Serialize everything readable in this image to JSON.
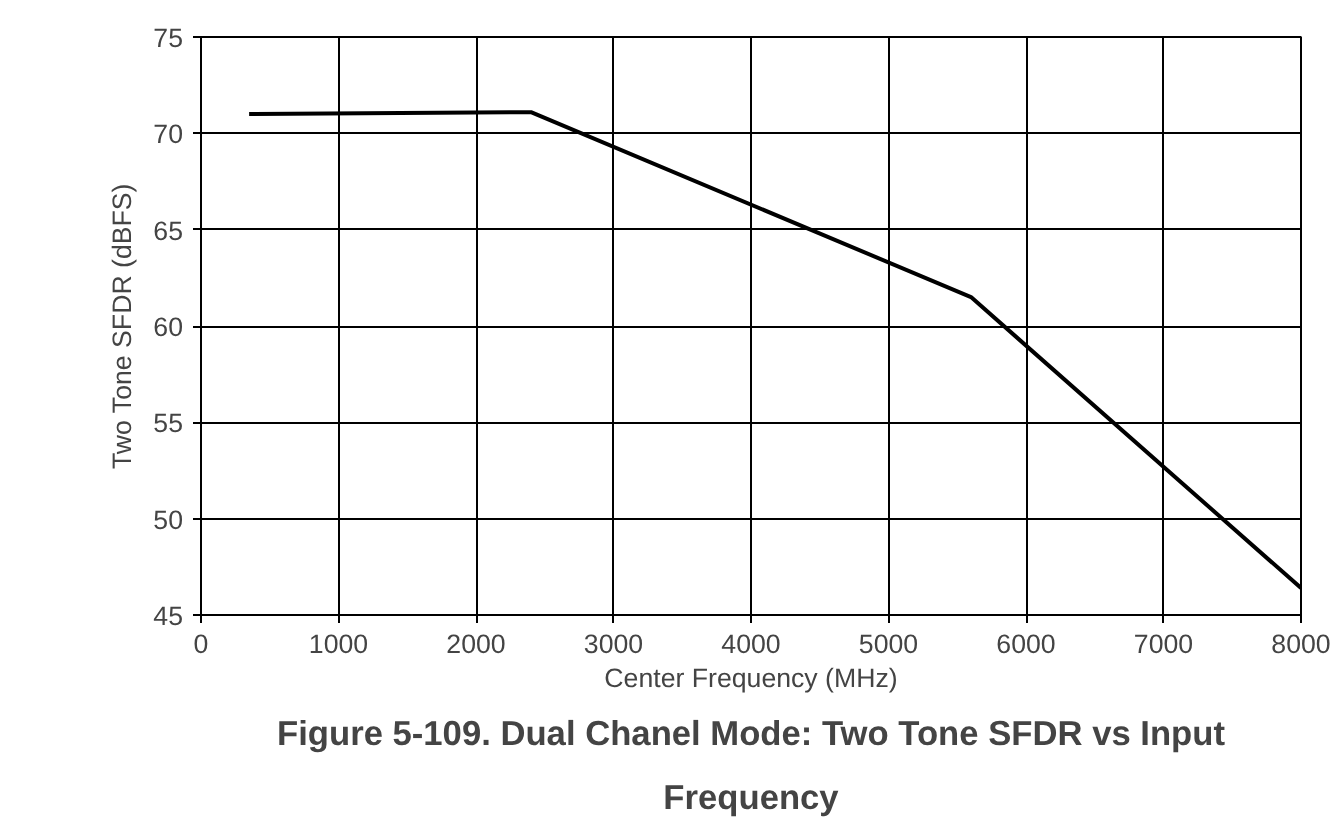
{
  "chart_data": {
    "type": "line",
    "title": "Figure 5-109. Dual Chanel Mode: Two Tone SFDR vs Input Frequency",
    "xlabel": "Center Frequency (MHz)",
    "ylabel": "Two Tone SFDR (dBFS)",
    "x": [
      350,
      2400,
      5600,
      8000
    ],
    "series": [
      {
        "color": "#000000",
        "values": [
          71.0,
          71.1,
          61.5,
          46.4
        ]
      }
    ],
    "xlim": [
      0,
      8000
    ],
    "xticks": [
      0,
      1000,
      2000,
      3000,
      4000,
      5000,
      6000,
      7000,
      8000
    ],
    "ylim": [
      45,
      75
    ],
    "yticks": [
      45,
      50,
      55,
      60,
      65,
      70,
      75
    ],
    "grid": true,
    "marker": "none",
    "line_style": "solid"
  }
}
